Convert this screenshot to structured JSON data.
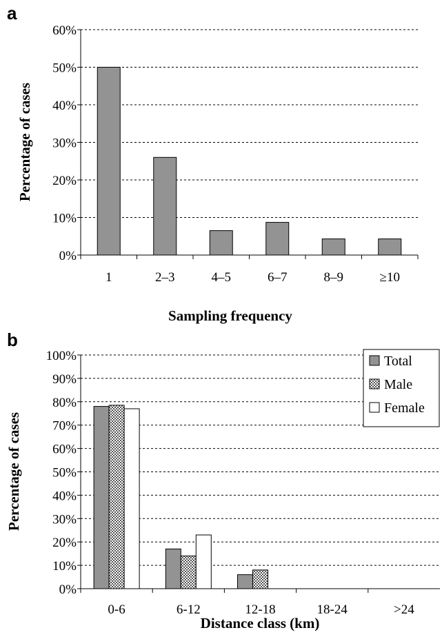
{
  "chart_data": [
    {
      "panel": "a",
      "type": "bar",
      "categories": [
        "1",
        "2–3",
        "4–5",
        "6–7",
        "8–9",
        "≥10"
      ],
      "values": [
        50,
        26,
        6.5,
        8.7,
        4.3,
        4.3
      ],
      "xlabel": "Sampling frequency",
      "ylabel": "Percentage of cases",
      "ylim": [
        0,
        60
      ],
      "yticks": [
        "0%",
        "10%",
        "20%",
        "30%",
        "40%",
        "50%",
        "60%"
      ],
      "grid": true,
      "colors": {
        "bar": "#939393"
      }
    },
    {
      "panel": "b",
      "type": "bar",
      "categories": [
        "0-6",
        "6-12",
        "12-18",
        "18-24",
        ">24"
      ],
      "series": [
        {
          "name": "Total",
          "values": [
            78,
            17,
            6,
            0,
            0
          ],
          "fill": "solid",
          "color": "#939393"
        },
        {
          "name": "Male",
          "values": [
            78.5,
            14,
            8,
            0,
            0
          ],
          "fill": "checker",
          "color": "#555555"
        },
        {
          "name": "Female",
          "values": [
            77,
            23,
            0,
            0,
            0
          ],
          "fill": "white",
          "color": "#ffffff"
        }
      ],
      "xlabel": "Distance class (km)",
      "ylabel": "Percentage of cases",
      "ylim": [
        0,
        100
      ],
      "yticks": [
        "0%",
        "10%",
        "20%",
        "30%",
        "40%",
        "50%",
        "60%",
        "70%",
        "80%",
        "90%",
        "100%"
      ],
      "grid": true,
      "legend_position": "top-right"
    }
  ]
}
